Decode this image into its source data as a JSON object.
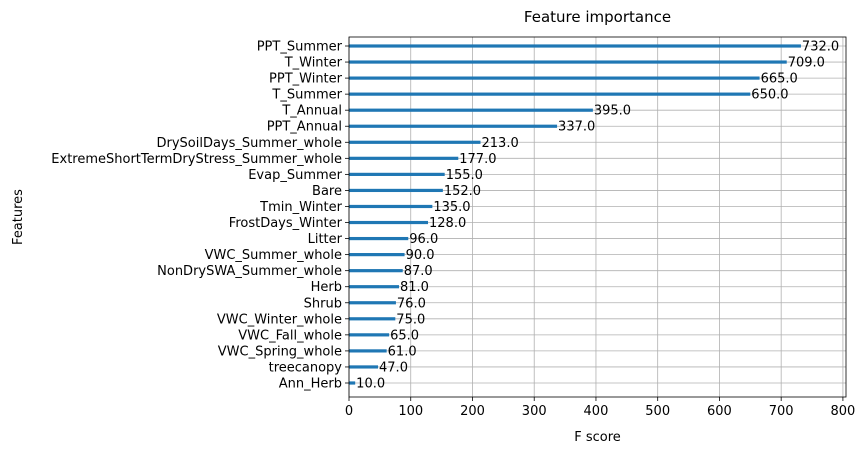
{
  "chart_data": {
    "type": "bar",
    "orientation": "horizontal",
    "title": "Feature importance",
    "xlabel": "F score",
    "ylabel": "Features",
    "xlim": [
      0,
      805
    ],
    "xticks": [
      0,
      100,
      200,
      300,
      400,
      500,
      600,
      700,
      800
    ],
    "grid": true,
    "bar_color": "#1f77b4",
    "categories": [
      "PPT_Summer",
      "T_Winter",
      "PPT_Winter",
      "T_Summer",
      "T_Annual",
      "PPT_Annual",
      "DrySoilDays_Summer_whole",
      "ExtremeShortTermDryStress_Summer_whole",
      "Evap_Summer",
      "Bare",
      "Tmin_Winter",
      "FrostDays_Winter",
      "Litter",
      "VWC_Summer_whole",
      "NonDrySWA_Summer_whole",
      "Herb",
      "Shrub",
      "VWC_Winter_whole",
      "VWC_Fall_whole",
      "VWC_Spring_whole",
      "treecanopy",
      "Ann_Herb"
    ],
    "values": [
      732.0,
      709.0,
      665.0,
      650.0,
      395.0,
      337.0,
      213.0,
      177.0,
      155.0,
      152.0,
      135.0,
      128.0,
      96.0,
      90.0,
      87.0,
      81.0,
      76.0,
      75.0,
      65.0,
      61.0,
      47.0,
      10.0
    ],
    "value_labels": [
      "732.0",
      "709.0",
      "665.0",
      "650.0",
      "395.0",
      "337.0",
      "213.0",
      "177.0",
      "155.0",
      "152.0",
      "135.0",
      "128.0",
      "96.0",
      "90.0",
      "87.0",
      "81.0",
      "76.0",
      "75.0",
      "65.0",
      "61.0",
      "47.0",
      "10.0"
    ]
  }
}
